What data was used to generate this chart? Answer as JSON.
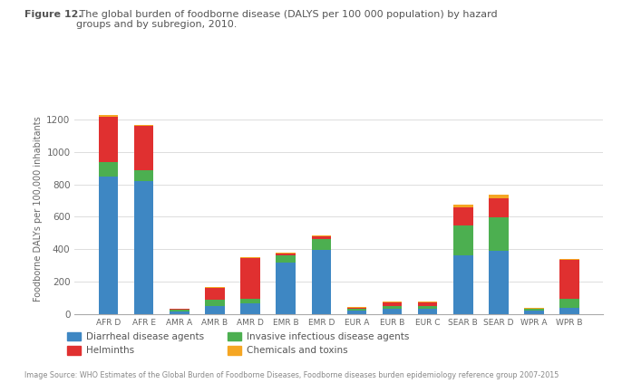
{
  "categories": [
    "AFR D",
    "AFR E",
    "AMR A",
    "AMR B",
    "AMR D",
    "EMR B",
    "EMR D",
    "EUR A",
    "EUR B",
    "EUR C",
    "SEAR B",
    "SEAR D",
    "WPR A",
    "WPR B"
  ],
  "diarrheal": [
    850,
    820,
    18,
    50,
    65,
    320,
    395,
    20,
    30,
    35,
    360,
    390,
    20,
    40
  ],
  "invasive": [
    90,
    65,
    8,
    40,
    30,
    45,
    70,
    15,
    20,
    15,
    185,
    205,
    10,
    55
  ],
  "helminths": [
    280,
    275,
    5,
    70,
    250,
    10,
    15,
    5,
    20,
    20,
    115,
    120,
    5,
    240
  ],
  "chemicals": [
    10,
    5,
    2,
    5,
    5,
    5,
    5,
    2,
    5,
    5,
    15,
    20,
    2,
    5
  ],
  "colors": {
    "diarrheal": "#3e87c3",
    "invasive": "#4caf50",
    "helminths": "#e03030",
    "chemicals": "#f5a623"
  },
  "ylabel": "Foodborne DALYs per 100,000 inhabitants",
  "ylim": [
    0,
    1300
  ],
  "yticks": [
    0,
    200,
    400,
    600,
    800,
    1000,
    1200
  ],
  "title_bold": "Figure 12.",
  "title_rest": " The global burden of foodborne disease (DALYS per 100 000 population) by hazard\ngroups and by subregion, 2010.",
  "legend_labels": [
    "Diarrheal disease agents",
    "Invasive infectious disease agents",
    "Helminths",
    "Chemicals and toxins"
  ],
  "footer": "Image Source: WHO Estimates of the Global Burden of Foodborne Diseases, Foodborne diseases burden epidemiology reference group 2007-2015",
  "bg_color": "#ffffff",
  "bar_width": 0.55
}
